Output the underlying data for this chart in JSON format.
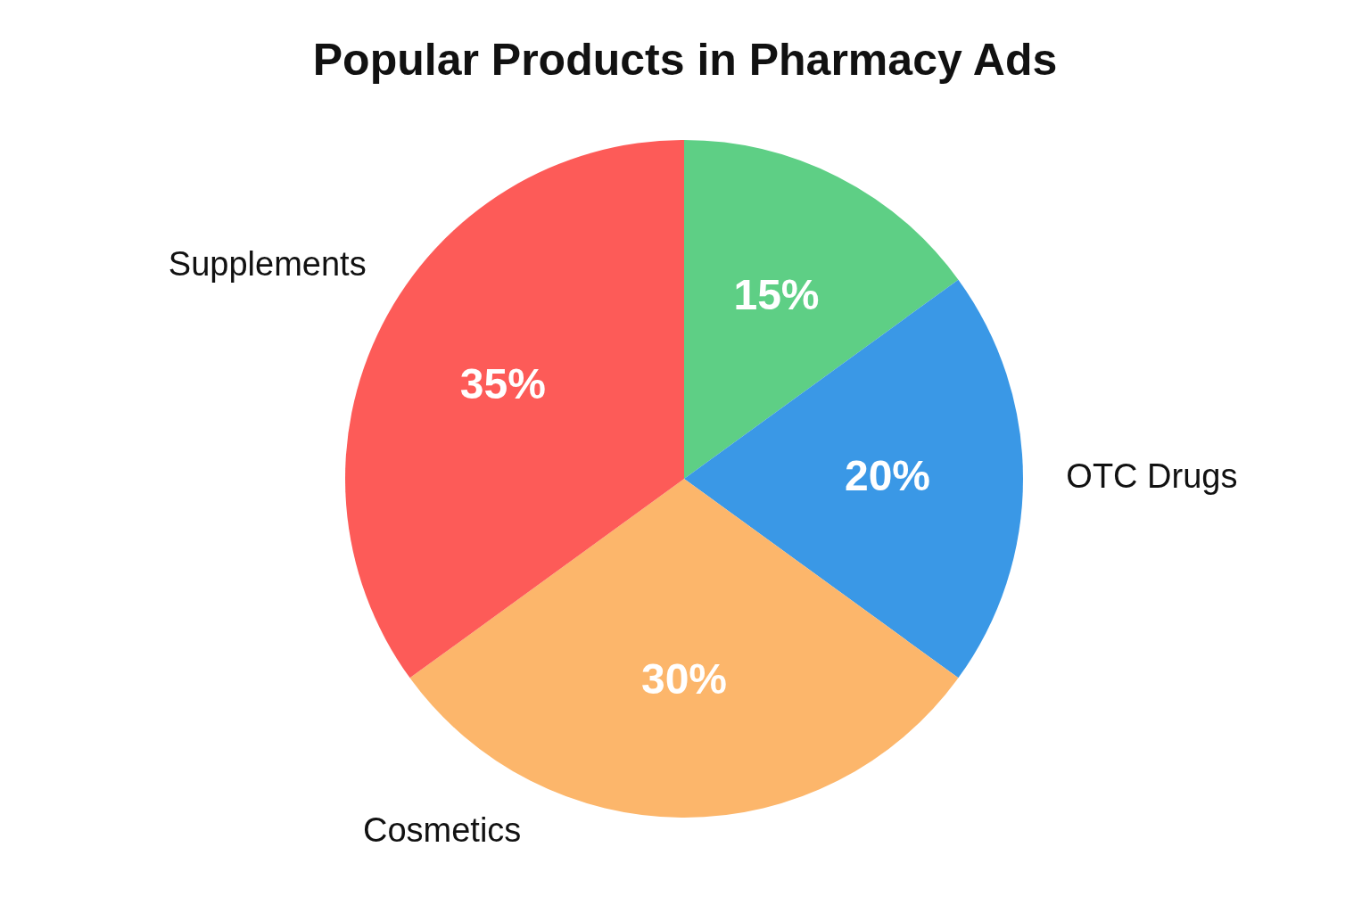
{
  "chart_data": {
    "type": "pie",
    "title": "Popular Products in Pharmacy Ads",
    "categories": [
      null,
      "OTC Drugs",
      "Cosmetics",
      "Supplements"
    ],
    "values": [
      15,
      20,
      30,
      35
    ],
    "value_labels": [
      "15%",
      "20%",
      "30%",
      "35%"
    ],
    "colors": [
      "#5ecf85",
      "#3a98e6",
      "#fcb66b",
      "#fd5b58"
    ],
    "legend": false
  }
}
